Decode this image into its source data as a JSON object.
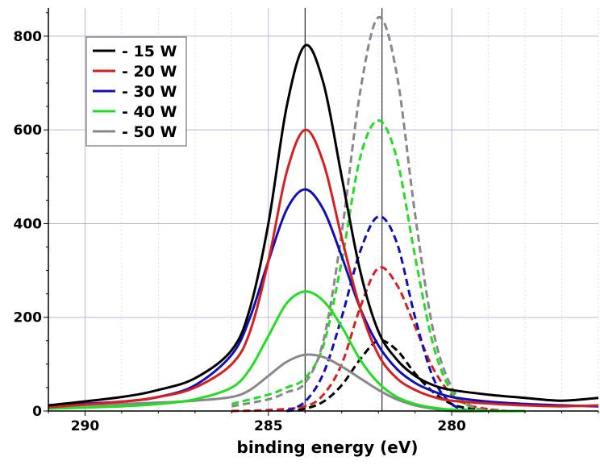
{
  "chart_data": {
    "type": "line",
    "title": "",
    "xlabel": "binding energy (eV)",
    "ylabel": "",
    "x_reversed": true,
    "xlim": [
      291,
      276
    ],
    "ylim": [
      0,
      860
    ],
    "x_ticks": [
      290,
      285,
      280
    ],
    "y_ticks": [
      0,
      200,
      400,
      600,
      800
    ],
    "grid": true,
    "reference_lines_x": [
      284,
      281.9
    ],
    "legend": {
      "placement": "top-left",
      "entries": [
        "- 15 W",
        "- 20 W",
        "- 30 W",
        "- 40 W",
        "- 50 W"
      ]
    },
    "series": [
      {
        "name": "- 15 W",
        "color": "#000000",
        "style": "solid",
        "x": [
          291,
          289,
          288,
          287,
          286,
          285.5,
          285,
          284.5,
          284,
          283.5,
          283,
          282.5,
          282,
          281.5,
          281,
          280.5,
          280,
          279,
          278,
          277,
          276
        ],
        "y": [
          12,
          30,
          45,
          70,
          130,
          220,
          400,
          650,
          780,
          700,
          500,
          300,
          170,
          110,
          75,
          55,
          45,
          35,
          28,
          22,
          28
        ]
      },
      {
        "name": "- 20 W",
        "color": "#d62020",
        "style": "solid",
        "x": [
          291,
          289,
          288,
          287,
          286,
          285.5,
          285,
          284.5,
          284,
          283.5,
          283,
          282.5,
          282,
          281.5,
          281,
          280.5,
          280,
          279,
          278,
          277,
          276
        ],
        "y": [
          8,
          20,
          30,
          50,
          100,
          170,
          320,
          510,
          600,
          530,
          370,
          220,
          120,
          70,
          45,
          30,
          22,
          16,
          12,
          10,
          12
        ]
      },
      {
        "name": "- 30 W",
        "color": "#1010b8",
        "style": "solid",
        "x": [
          291,
          289,
          288,
          287,
          286,
          285.5,
          285,
          284.5,
          284,
          283.5,
          283,
          282.5,
          282,
          281.5,
          281,
          280.5,
          280,
          279,
          278,
          277,
          276
        ],
        "y": [
          12,
          20,
          30,
          55,
          120,
          200,
          320,
          430,
          473,
          430,
          330,
          220,
          140,
          90,
          60,
          42,
          30,
          20,
          15,
          12,
          10
        ]
      },
      {
        "name": "- 40 W",
        "color": "#22dd22",
        "style": "solid",
        "x": [
          291,
          289,
          288,
          287,
          286,
          285.5,
          285,
          284.5,
          284,
          283.5,
          283,
          282.5,
          282,
          281.5,
          281,
          280.5,
          280,
          279,
          278
        ],
        "y": [
          5,
          10,
          15,
          25,
          50,
          90,
          160,
          230,
          255,
          235,
          180,
          110,
          60,
          30,
          15,
          7,
          3,
          0,
          0
        ]
      },
      {
        "name": "- 50 W",
        "color": "#888888",
        "style": "solid",
        "x": [
          291,
          289,
          288,
          287,
          286,
          285.5,
          285,
          284.5,
          284,
          283.5,
          283,
          282.5,
          282,
          281.5,
          281,
          280.5,
          280,
          279,
          278
        ],
        "y": [
          10,
          15,
          18,
          22,
          30,
          45,
          75,
          105,
          120,
          115,
          95,
          70,
          45,
          25,
          12,
          5,
          0,
          0,
          0
        ]
      },
      {
        "name": "",
        "color": "#000000",
        "style": "dashed",
        "x": [
          284.5,
          284,
          283.5,
          283,
          282.5,
          282,
          281.5,
          281,
          280.5,
          280,
          279.5,
          279,
          278.5
        ],
        "y": [
          0,
          5,
          20,
          55,
          110,
          150,
          130,
          80,
          40,
          15,
          5,
          2,
          0
        ]
      },
      {
        "name": "",
        "color": "#d62020",
        "style": "dashed",
        "x": [
          286,
          285,
          284,
          283.5,
          283,
          282.5,
          282,
          281.5,
          281,
          280.5,
          280,
          279.5,
          279,
          278.5
        ],
        "y": [
          0,
          2,
          10,
          35,
          100,
          220,
          305,
          270,
          180,
          90,
          35,
          12,
          4,
          0
        ]
      },
      {
        "name": "",
        "color": "#1010b8",
        "style": "dashed",
        "x": [
          284.5,
          284,
          283.5,
          283,
          282.5,
          282,
          281.5,
          281,
          280.5,
          280,
          279.5
        ],
        "y": [
          0,
          20,
          80,
          200,
          340,
          415,
          360,
          200,
          70,
          15,
          0
        ]
      },
      {
        "name": "",
        "color": "#22dd22",
        "style": "dashed",
        "x": [
          286,
          285,
          284.5,
          284,
          283.5,
          283,
          282.5,
          282,
          281.5,
          281,
          280.5,
          280,
          279.5,
          279
        ],
        "y": [
          15,
          35,
          50,
          70,
          140,
          320,
          540,
          620,
          540,
          330,
          140,
          40,
          10,
          0
        ]
      },
      {
        "name": "",
        "color": "#888888",
        "style": "dashed",
        "x": [
          286,
          285,
          284.5,
          284,
          283.5,
          283,
          282.5,
          282,
          281.5,
          281,
          280.5,
          280,
          279.5,
          279
        ],
        "y": [
          10,
          25,
          40,
          60,
          150,
          380,
          680,
          840,
          720,
          420,
          170,
          50,
          12,
          0
        ]
      }
    ]
  }
}
